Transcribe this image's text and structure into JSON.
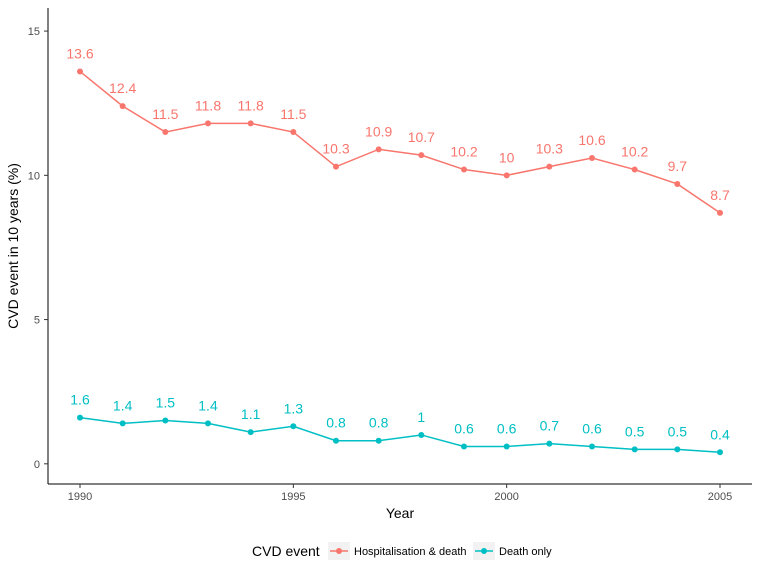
{
  "chart_data": {
    "type": "line",
    "title": "",
    "xlabel": "Year",
    "ylabel": "CVD event in 10 years (%)",
    "x": [
      1990,
      1991,
      1992,
      1993,
      1994,
      1995,
      1996,
      1997,
      1998,
      1999,
      2000,
      2001,
      2002,
      2003,
      2004,
      2005
    ],
    "x_ticks": [
      1990,
      1995,
      2000,
      2005
    ],
    "y_ticks": [
      0,
      5,
      10,
      15
    ],
    "xlim": [
      1989.25,
      2005.75
    ],
    "ylim": [
      -0.7,
      15.8
    ],
    "grid": false,
    "legend": {
      "title": "CVD event",
      "position": "bottom"
    },
    "series": [
      {
        "name": "Hospitalisation & death",
        "color": "#F8766D",
        "values": [
          13.6,
          12.4,
          11.5,
          11.8,
          11.8,
          11.5,
          10.3,
          10.9,
          10.7,
          10.2,
          10,
          10.3,
          10.6,
          10.2,
          9.7,
          8.7
        ],
        "labels": [
          "13.6",
          "12.4",
          "11.5",
          "11.8",
          "11.8",
          "11.5",
          "10.3",
          "10.9",
          "10.7",
          "10.2",
          "10",
          "10.3",
          "10.6",
          "10.2",
          "9.7",
          "8.7"
        ]
      },
      {
        "name": "Death only",
        "color": "#00BFC4",
        "values": [
          1.6,
          1.4,
          1.5,
          1.4,
          1.1,
          1.3,
          0.8,
          0.8,
          1,
          0.6,
          0.6,
          0.7,
          0.6,
          0.5,
          0.5,
          0.4
        ],
        "labels": [
          "1.6",
          "1.4",
          "1.5",
          "1.4",
          "1.1",
          "1.3",
          "0.8",
          "0.8",
          "1",
          "0.6",
          "0.6",
          "0.7",
          "0.6",
          "0.5",
          "0.5",
          "0.4"
        ]
      }
    ]
  }
}
